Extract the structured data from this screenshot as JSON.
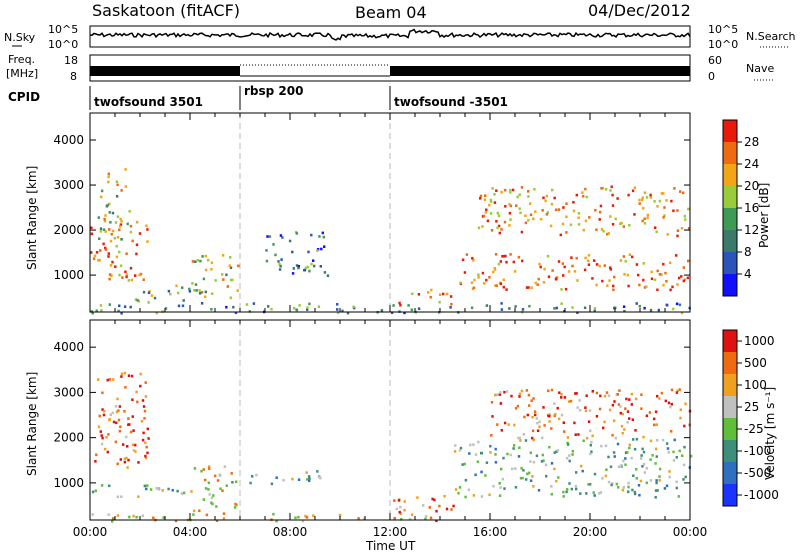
{
  "header": {
    "station": "Saskatoon (fitACF)",
    "beam": "Beam 04",
    "date": "04/Dec/2012"
  },
  "summary_panel": {
    "nsky_label": "N.Sky",
    "nsky_ticks": [
      "10^5",
      "10^0"
    ],
    "nsearch_label": "N.Search",
    "nsearch_ticks": [
      "10^5",
      "10^0"
    ],
    "freq_label_1": "Freq.",
    "freq_label_2": "[MHz]",
    "freq_ticks": [
      "18",
      "8"
    ],
    "nave_label": "Nave",
    "nave_ticks": [
      "60",
      "0"
    ],
    "cpid_label": "CPID",
    "cpid_segments": [
      {
        "label": "twofsound 3501",
        "start_hour": 0,
        "end_hour": 6
      },
      {
        "label": "rbsp 200",
        "start_hour": 6,
        "end_hour": 12
      },
      {
        "label": "twofsound -3501",
        "start_hour": 12,
        "end_hour": 24
      }
    ]
  },
  "chart_data": [
    {
      "type": "heatmap",
      "name": "power",
      "ylabel": "Slant Range [km]",
      "xlabel": "",
      "xlim": [
        0,
        24
      ],
      "ylim": [
        180,
        4600
      ],
      "yticks": [
        "1000",
        "2000",
        "3000",
        "4000"
      ],
      "colorbar": {
        "label": "Power [dB]",
        "ticks": [
          "4",
          "8",
          "12",
          "16",
          "20",
          "24",
          "28"
        ],
        "colors": [
          "#1010ff",
          "#2b55b8",
          "#3a7a6a",
          "#3f9a56",
          "#9acb3a",
          "#f2a516",
          "#f06a10",
          "#e81a0a"
        ]
      },
      "regions": [
        {
          "hours": [
            0.0,
            2.3
          ],
          "range_km": [
            900,
            2300
          ],
          "level": 0.85
        },
        {
          "hours": [
            0.3,
            1.6
          ],
          "range_km": [
            1800,
            3400
          ],
          "level": 0.55
        },
        {
          "hours": [
            1.5,
            4.5
          ],
          "range_km": [
            400,
            800
          ],
          "level": 0.45
        },
        {
          "hours": [
            4.0,
            6.0
          ],
          "range_km": [
            500,
            1500
          ],
          "level": 0.55
        },
        {
          "hours": [
            7.0,
            9.5
          ],
          "range_km": [
            1000,
            2000
          ],
          "level": 0.3
        },
        {
          "hours": [
            12.3,
            14.5
          ],
          "range_km": [
            350,
            700
          ],
          "level": 0.75
        },
        {
          "hours": [
            14.7,
            24.0
          ],
          "range_km": [
            700,
            1500
          ],
          "level": 0.85
        },
        {
          "hours": [
            15.5,
            24.0
          ],
          "range_km": [
            1900,
            3000
          ],
          "level": 0.75
        },
        {
          "hours": [
            0.0,
            24.0
          ],
          "range_km": [
            180,
            400
          ],
          "level": 0.35
        }
      ]
    },
    {
      "type": "heatmap",
      "name": "velocity",
      "ylabel": "Slant Range [km]",
      "xlabel": "Time UT",
      "xlim": [
        0,
        24
      ],
      "ylim": [
        180,
        4600
      ],
      "yticks": [
        "1000",
        "2000",
        "3000",
        "4000"
      ],
      "xticks": [
        "00:00",
        "04:00",
        "08:00",
        "12:00",
        "16:00",
        "20:00",
        "00:00"
      ],
      "colorbar": {
        "label": "Velocity [m s⁻¹]",
        "ticks": [
          "1000",
          "500",
          "100",
          "25",
          "-25",
          "-100",
          "-500",
          "-1000"
        ],
        "colors": [
          "#1a33ff",
          "#2f6fc0",
          "#3d8f7a",
          "#5fbf3a",
          "#c0c0c0",
          "#f0a020",
          "#f06a10",
          "#e01010"
        ]
      },
      "regions": [
        {
          "hours": [
            0.0,
            2.3
          ],
          "range_km": [
            1300,
            3500
          ],
          "level": 0.85
        },
        {
          "hours": [
            0.0,
            4.0
          ],
          "range_km": [
            700,
            1000
          ],
          "level": 0.45
        },
        {
          "hours": [
            4.0,
            6.0
          ],
          "range_km": [
            400,
            1400
          ],
          "level": 0.6
        },
        {
          "hours": [
            6.2,
            9.5
          ],
          "range_km": [
            1000,
            1300
          ],
          "level": 0.45
        },
        {
          "hours": [
            12.0,
            14.5
          ],
          "range_km": [
            300,
            800
          ],
          "level": 0.8
        },
        {
          "hours": [
            14.5,
            24.0
          ],
          "range_km": [
            700,
            2000
          ],
          "level": 0.45
        },
        {
          "hours": [
            16.0,
            24.0
          ],
          "range_km": [
            2000,
            3100
          ],
          "level": 0.8
        },
        {
          "hours": [
            0.0,
            14.0
          ],
          "range_km": [
            180,
            350
          ],
          "level": 0.65
        }
      ]
    }
  ]
}
